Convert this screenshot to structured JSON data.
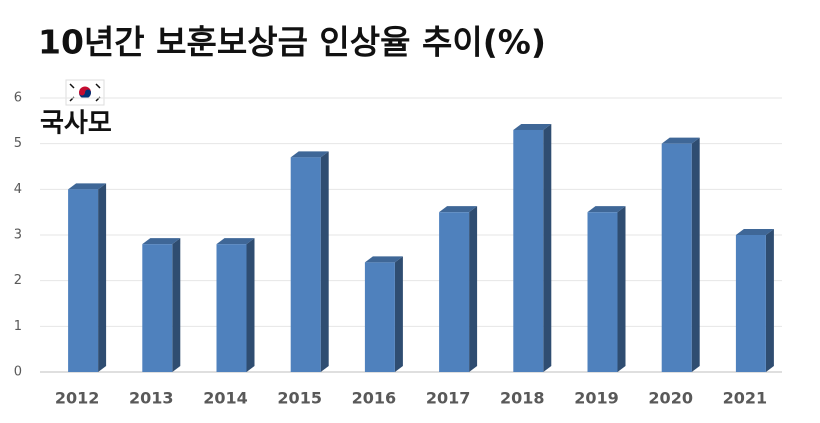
{
  "logo": "국사모",
  "chart_data": {
    "type": "bar3d",
    "title": "10년간 보훈보상금 인상율 추이(%)",
    "categories": [
      "2012",
      "2013",
      "2014",
      "2015",
      "2016",
      "2017",
      "2018",
      "2019",
      "2020",
      "2021"
    ],
    "values": [
      4.0,
      2.8,
      2.8,
      4.7,
      2.4,
      3.5,
      5.3,
      3.5,
      5.0,
      3.0
    ],
    "color": "#4f81bd",
    "ylim": [
      0,
      6
    ],
    "yticks": [
      0,
      1,
      2,
      3,
      4,
      5,
      6
    ],
    "grid": true
  }
}
